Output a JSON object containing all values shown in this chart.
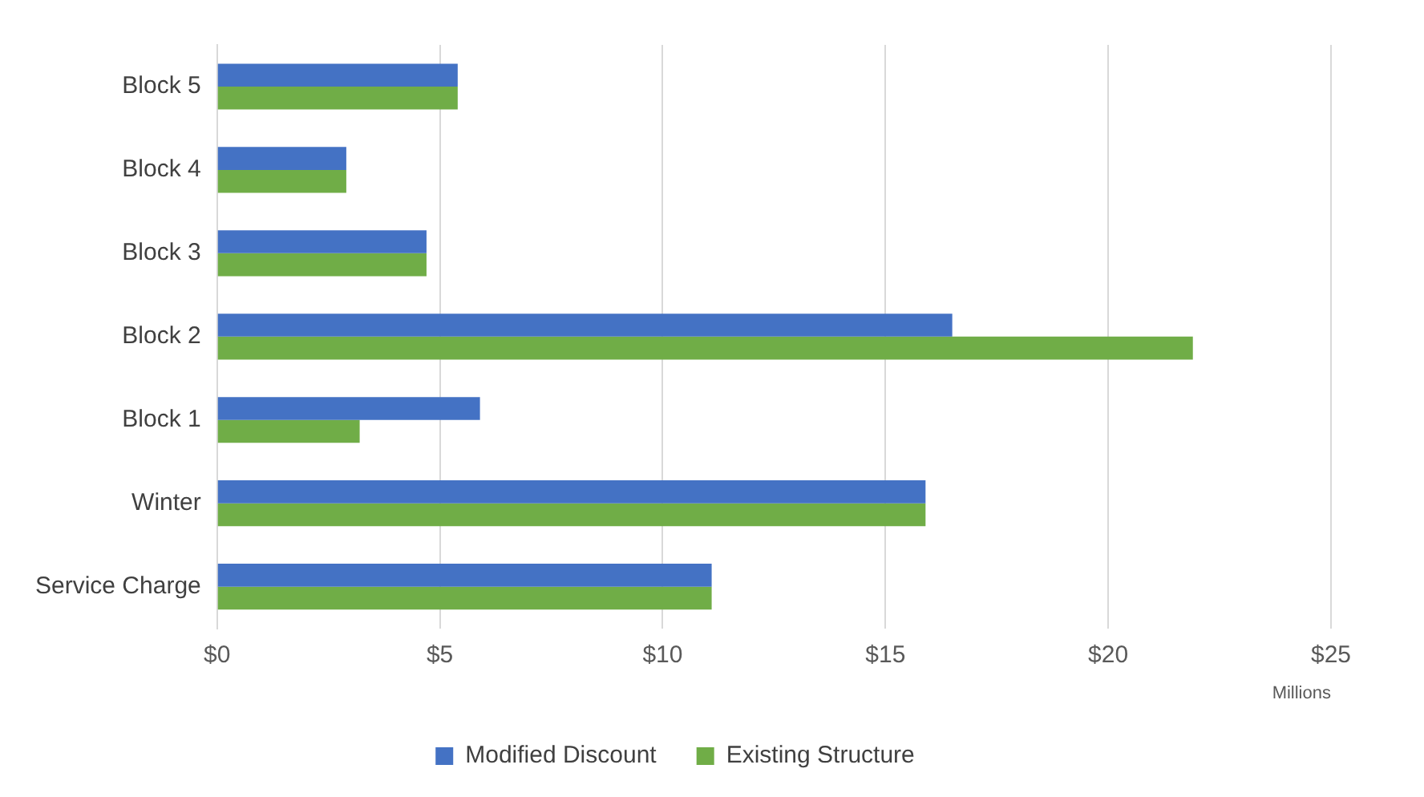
{
  "chart_data": {
    "type": "bar",
    "orientation": "horizontal",
    "xlabel": "Millions",
    "categories": [
      "Block 5",
      "Block 4",
      "Block 3",
      "Block 2",
      "Block 1",
      "Winter",
      "Service Charge"
    ],
    "series": [
      {
        "name": "Modified Discount",
        "color": "#4472c4",
        "values": [
          5.4,
          2.9,
          4.7,
          16.5,
          5.9,
          15.9,
          11.1
        ]
      },
      {
        "name": "Existing Structure",
        "color": "#70ad47",
        "values": [
          5.4,
          2.9,
          4.7,
          21.9,
          3.2,
          15.9,
          11.1
        ]
      }
    ],
    "xlim": [
      0,
      25
    ],
    "xticks": [
      {
        "value": 0,
        "label": "$0"
      },
      {
        "value": 5,
        "label": "$5"
      },
      {
        "value": 10,
        "label": "$10"
      },
      {
        "value": 15,
        "label": "$15"
      },
      {
        "value": 20,
        "label": "$20"
      },
      {
        "value": 25,
        "label": "$25"
      }
    ],
    "grid": "x",
    "legend": "bottom"
  }
}
